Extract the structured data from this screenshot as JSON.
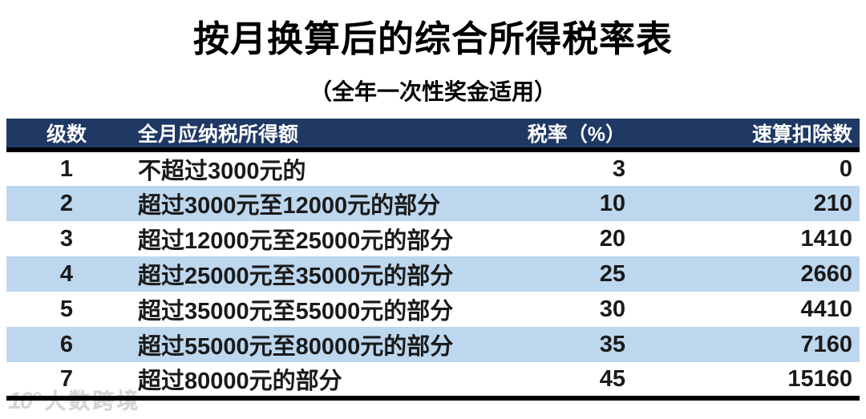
{
  "page": {
    "title": "按月换算后的综合所得税率表",
    "subtitle": "（全年一次性奖金适用）"
  },
  "table": {
    "headers": {
      "level": "级数",
      "income": "全月应纳税所得额",
      "rate": "税率（%）",
      "deduction": "速算扣除数"
    },
    "rows": [
      {
        "level": "1",
        "income": "不超过3000元的",
        "rate": "3",
        "deduction": "0"
      },
      {
        "level": "2",
        "income": "超过3000元至12000元的部分",
        "rate": "10",
        "deduction": "210"
      },
      {
        "level": "3",
        "income": "超过12000元至25000元的部分",
        "rate": "20",
        "deduction": "1410"
      },
      {
        "level": "4",
        "income": "超过25000元至35000元的部分",
        "rate": "25",
        "deduction": "2660"
      },
      {
        "level": "5",
        "income": "超过35000元至55000元的部分",
        "rate": "30",
        "deduction": "4410"
      },
      {
        "level": "6",
        "income": "超过55000元至80000元的部分",
        "rate": "35",
        "deduction": "7160"
      },
      {
        "level": "7",
        "income": "超过80000元的部分",
        "rate": "45",
        "deduction": "15160"
      }
    ]
  },
  "watermark": {
    "logo": "10°",
    "text": "大数跨境"
  },
  "colors": {
    "header_bg": "#1f3864",
    "stripe_bg": "#bdd7ee",
    "border": "#000000"
  }
}
